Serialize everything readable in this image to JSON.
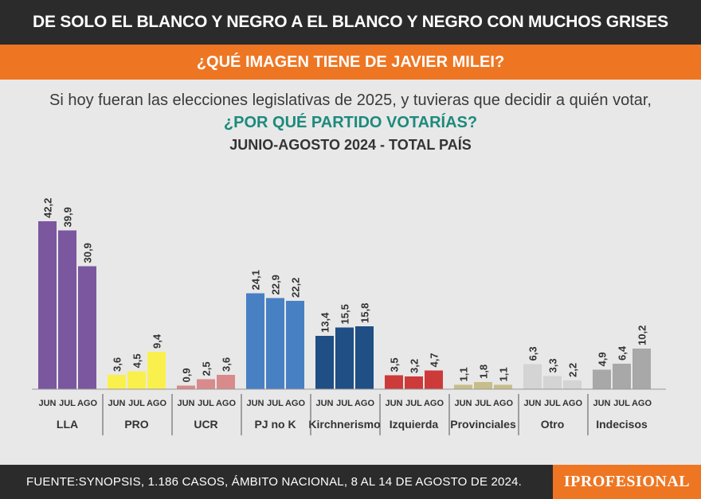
{
  "header": {
    "title": "DE SOLO EL BLANCO Y NEGRO A EL BLANCO Y NEGRO CON MUCHOS GRISES",
    "question": "¿QUÉ IMAGEN TIENE DE JAVIER MILEI?"
  },
  "intro": {
    "subtitle": "Si hoy fueran las elecciones legislativas de 2025, y tuvieras que decidir a quién votar,",
    "question": "¿POR QUÉ PARTIDO VOTARÍAS?",
    "period": "JUNIO-AGOSTO 2024 - TOTAL PAÍS"
  },
  "footer": {
    "source": "FUENTE:SYNOPSIS, 1.186 CASOS, ÁMBITO NACIONAL, 8 AL 14 DE AGOSTO DE 2024.",
    "brand": "IPROFESIONAL"
  },
  "chart_data": {
    "type": "bar",
    "title": "¿POR QUÉ PARTIDO VOTARÍAS?",
    "subtitle": "JUNIO-AGOSTO 2024 - TOTAL PAÍS",
    "months": [
      "JUN",
      "JUL",
      "AGO"
    ],
    "ylim": [
      0,
      45
    ],
    "grid": false,
    "groups": [
      {
        "name": "LLA",
        "values": [
          42.2,
          39.9,
          30.9
        ],
        "labels": [
          "42,2",
          "39,9",
          "30,9"
        ],
        "colors": [
          "#7b579f",
          "#7b579f",
          "#7b579f"
        ]
      },
      {
        "name": "PRO",
        "values": [
          3.6,
          4.5,
          9.4
        ],
        "labels": [
          "3,6",
          "4,5",
          "9,4"
        ],
        "colors": [
          "#faf04d",
          "#faf04d",
          "#faf04d"
        ]
      },
      {
        "name": "UCR",
        "values": [
          0.9,
          2.5,
          3.6
        ],
        "labels": [
          "0,9",
          "2,5",
          "3,6"
        ],
        "colors": [
          "#d98a8a",
          "#d98a8a",
          "#d98a8a"
        ]
      },
      {
        "name": "PJ no K",
        "values": [
          24.1,
          22.9,
          22.2
        ],
        "labels": [
          "24,1",
          "22,9",
          "22,2"
        ],
        "colors": [
          "#4880c4",
          "#4880c4",
          "#4880c4"
        ]
      },
      {
        "name": "Kirchnerismo",
        "values": [
          13.4,
          15.5,
          15.8
        ],
        "labels": [
          "13,4",
          "15,5",
          "15,8"
        ],
        "colors": [
          "#1f4f84",
          "#1f4f84",
          "#1f4f84"
        ]
      },
      {
        "name": "Izquierda",
        "values": [
          3.5,
          3.2,
          4.7
        ],
        "labels": [
          "3,5",
          "3,2",
          "4,7"
        ],
        "colors": [
          "#cc3a3a",
          "#cc3a3a",
          "#cc3a3a"
        ]
      },
      {
        "name": "Provinciales",
        "values": [
          1.1,
          1.8,
          1.1
        ],
        "labels": [
          "1,1",
          "1,8",
          "1,1"
        ],
        "colors": [
          "#c6bd8a",
          "#c6bd8a",
          "#c6bd8a"
        ]
      },
      {
        "name": "Otro",
        "values": [
          6.3,
          3.3,
          2.2
        ],
        "labels": [
          "6,3",
          "3,3",
          "2,2"
        ],
        "colors": [
          "#d4d4d4",
          "#d4d4d4",
          "#d4d4d4"
        ]
      },
      {
        "name": "Indecisos",
        "values": [
          4.9,
          6.4,
          10.2
        ],
        "labels": [
          "4,9",
          "6,4",
          "10,2"
        ],
        "colors": [
          "#a8a8a8",
          "#a8a8a8",
          "#a8a8a8"
        ]
      }
    ]
  }
}
